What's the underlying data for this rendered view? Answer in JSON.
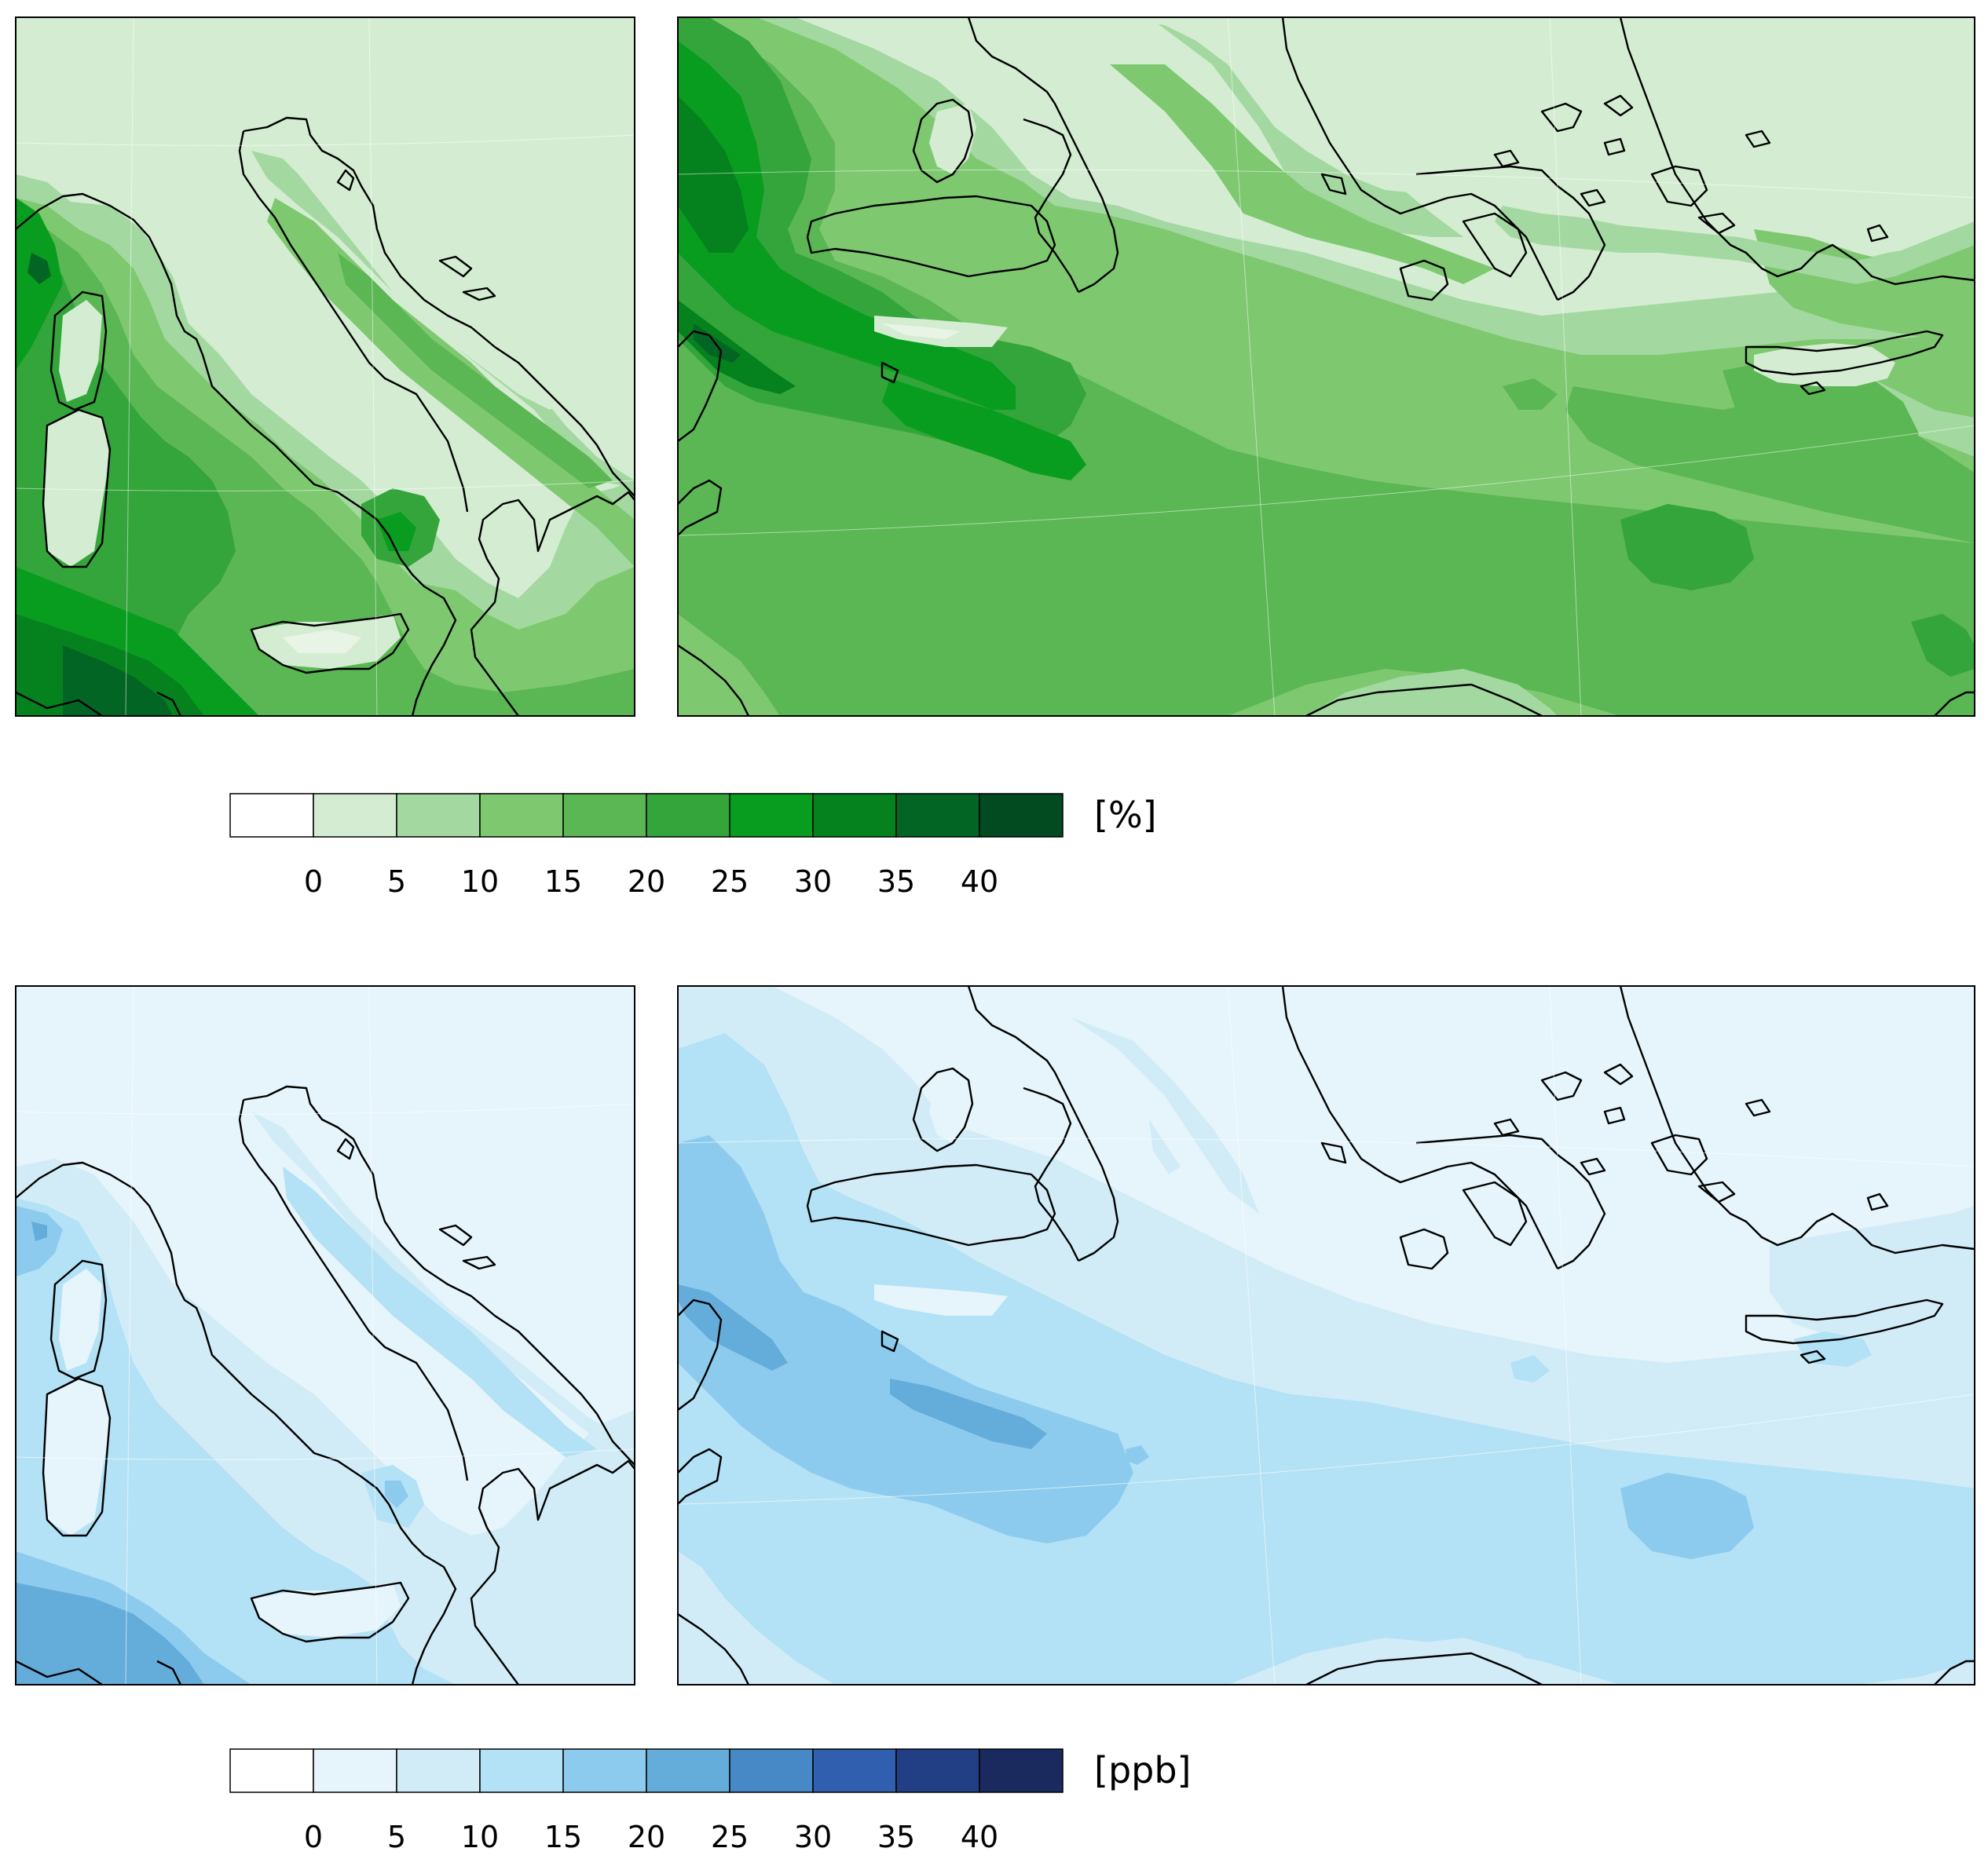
{
  "maps": [
    {
      "name": "italy-percent-map",
      "palette": "greens",
      "field": "italy_pct"
    },
    {
      "name": "med-percent-map",
      "palette": "greens",
      "field": "med_pct"
    },
    {
      "name": "italy-ppb-map",
      "palette": "blues",
      "field": "italy_ppb"
    },
    {
      "name": "med-ppb-map",
      "palette": "blues",
      "field": "med_ppb"
    }
  ],
  "colorbars": [
    {
      "name": "percent",
      "unit": "[%]",
      "ticks": [
        "0",
        "5",
        "10",
        "15",
        "20",
        "25",
        "30",
        "35",
        "40"
      ],
      "colors": [
        "#ffffff",
        "#d4edd2",
        "#a3d9a0",
        "#7ec870",
        "#5bb654",
        "#33a53a",
        "#089d1e",
        "#05821e",
        "#036524",
        "#024a1f"
      ]
    },
    {
      "name": "ppb",
      "unit": "[ppb]",
      "ticks": [
        "0",
        "5",
        "10",
        "15",
        "20",
        "25",
        "30",
        "35",
        "40"
      ],
      "colors": [
        "#ffffff",
        "#e6f4fb",
        "#d1ecf7",
        "#b3e1f5",
        "#8ccbed",
        "#64acda",
        "#4788c7",
        "#2f5fae",
        "#223f85",
        "#1a2a5e"
      ]
    }
  ],
  "coastline_color": "#000000"
}
